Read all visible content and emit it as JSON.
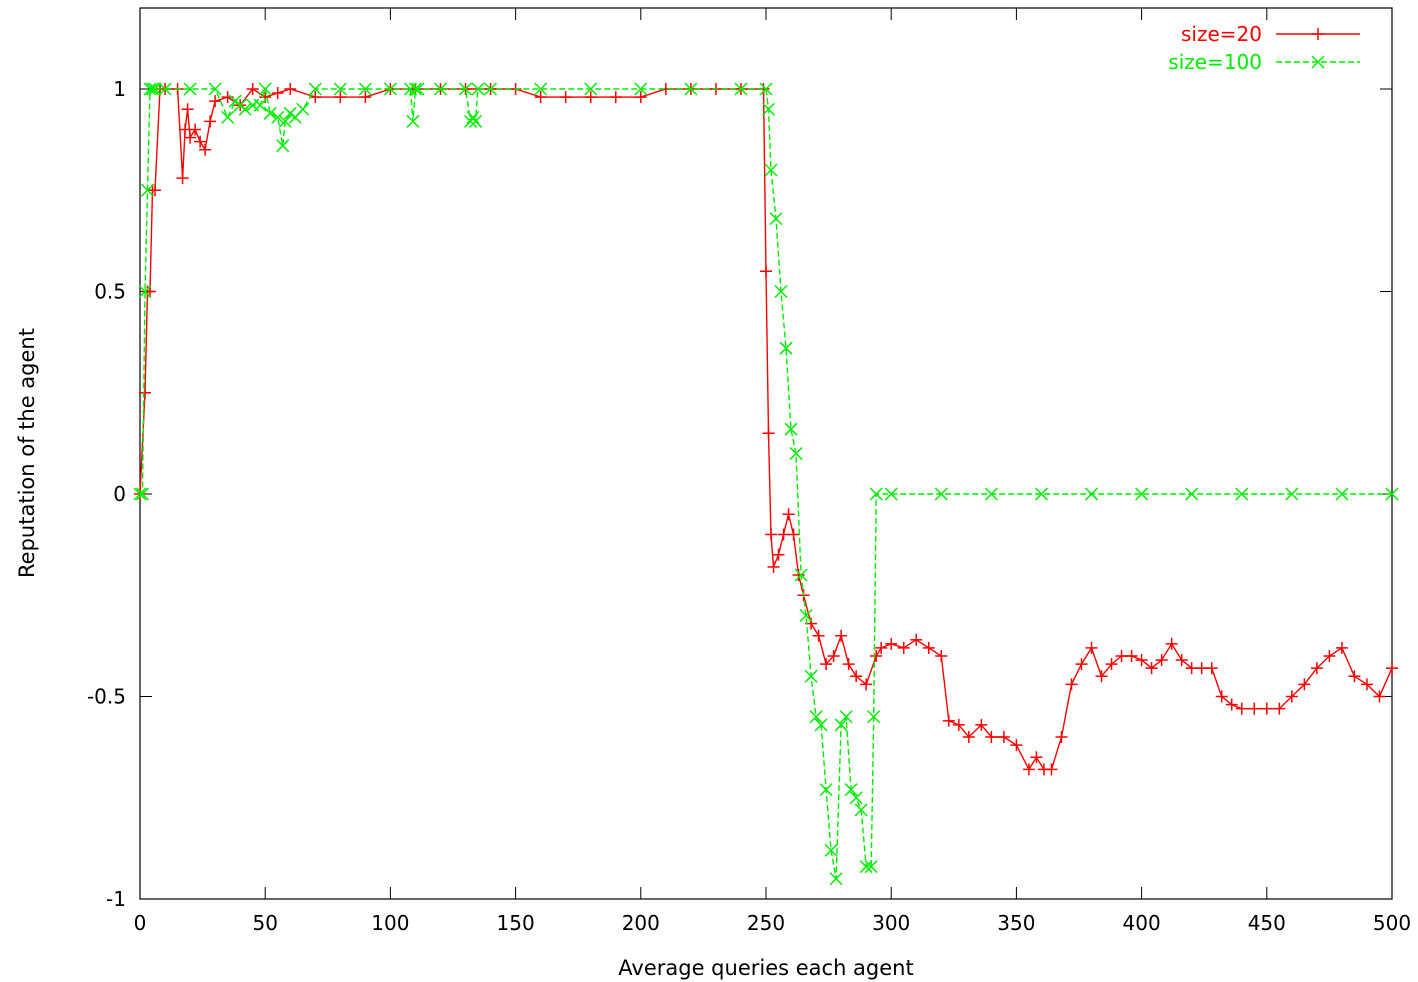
{
  "chart_data": {
    "type": "line",
    "title": "",
    "xlabel": "Average queries each agent",
    "ylabel": "Reputation of the agent",
    "xlim": [
      0,
      500
    ],
    "ylim": [
      -1,
      1.2
    ],
    "xticks": [
      0,
      50,
      100,
      150,
      200,
      250,
      300,
      350,
      400,
      450,
      500
    ],
    "yticks": [
      -1,
      -0.5,
      0,
      0.5,
      1
    ],
    "xtick_labels": [
      "0",
      "50",
      "100",
      "150",
      "200",
      "250",
      "300",
      "350",
      "400",
      "450",
      "500"
    ],
    "ytick_labels": [
      "-1",
      "-0.5",
      "0",
      "0.5",
      "1"
    ],
    "grid": false,
    "legend_position": "top-right",
    "series": [
      {
        "name": "size=20",
        "color": "#ff0000",
        "marker": "plus",
        "line_style": "solid",
        "x": [
          0,
          2,
          3,
          4,
          5,
          6,
          8,
          10,
          15,
          17,
          18,
          19,
          20,
          22,
          24,
          26,
          28,
          30,
          35,
          40,
          45,
          50,
          55,
          60,
          70,
          80,
          90,
          100,
          110,
          120,
          130,
          140,
          150,
          160,
          170,
          180,
          190,
          200,
          210,
          220,
          230,
          240,
          249,
          250,
          251,
          252,
          253,
          255,
          257,
          259,
          261,
          263,
          265,
          268,
          271,
          274,
          277,
          280,
          283,
          286,
          290,
          294,
          296,
          300,
          305,
          310,
          315,
          320,
          323,
          327,
          331,
          336,
          340,
          345,
          350,
          355,
          358,
          361,
          364,
          368,
          372,
          376,
          380,
          384,
          388,
          392,
          396,
          400,
          404,
          408,
          412,
          416,
          420,
          424,
          428,
          432,
          436,
          440,
          445,
          450,
          455,
          460,
          465,
          470,
          475,
          480,
          485,
          490,
          495,
          500
        ],
        "y": [
          0,
          0.25,
          0.5,
          0.5,
          0.75,
          0.75,
          1,
          1,
          1,
          0.78,
          0.9,
          0.95,
          0.88,
          0.9,
          0.87,
          0.85,
          0.92,
          0.97,
          0.98,
          0.96,
          1,
          0.98,
          0.99,
          1,
          0.98,
          0.98,
          0.98,
          1,
          1,
          1,
          1,
          1,
          1,
          0.98,
          0.98,
          0.98,
          0.98,
          0.98,
          1,
          1,
          1,
          1,
          1,
          0.55,
          0.15,
          -0.1,
          -0.18,
          -0.15,
          -0.1,
          -0.05,
          -0.1,
          -0.2,
          -0.25,
          -0.32,
          -0.35,
          -0.42,
          -0.4,
          -0.35,
          -0.42,
          -0.45,
          -0.47,
          -0.4,
          -0.38,
          -0.37,
          -0.38,
          -0.36,
          -0.38,
          -0.4,
          -0.56,
          -0.57,
          -0.6,
          -0.57,
          -0.6,
          -0.6,
          -0.62,
          -0.68,
          -0.65,
          -0.68,
          -0.68,
          -0.6,
          -0.47,
          -0.42,
          -0.38,
          -0.45,
          -0.42,
          -0.4,
          -0.4,
          -0.41,
          -0.43,
          -0.41,
          -0.37,
          -0.41,
          -0.43,
          -0.43,
          -0.43,
          -0.5,
          -0.52,
          -0.53,
          -0.53,
          -0.53,
          -0.53,
          -0.5,
          -0.47,
          -0.43,
          -0.4,
          -0.38,
          -0.45,
          -0.47,
          -0.5,
          -0.43
        ]
      },
      {
        "name": "size=100",
        "color": "#00ee00",
        "marker": "cross",
        "line_style": "dashed",
        "x": [
          0,
          1,
          2,
          3,
          4,
          5,
          6,
          10,
          20,
          30,
          35,
          38,
          40,
          42,
          45,
          48,
          50,
          52,
          55,
          57,
          58,
          60,
          62,
          65,
          70,
          80,
          90,
          100,
          108,
          109,
          110,
          111,
          120,
          130,
          132,
          133,
          134,
          135,
          140,
          160,
          180,
          200,
          220,
          240,
          250,
          251,
          252,
          254,
          256,
          258,
          260,
          262,
          264,
          266,
          268,
          270,
          272,
          274,
          276,
          278,
          280,
          282,
          284,
          286,
          288,
          290,
          292,
          293,
          294,
          300,
          320,
          340,
          360,
          380,
          400,
          420,
          440,
          460,
          480,
          500
        ],
        "y": [
          0,
          0,
          0.5,
          0.75,
          1,
          1,
          1,
          1,
          1,
          1,
          0.93,
          0.97,
          0.96,
          0.95,
          0.96,
          0.96,
          1,
          0.94,
          0.93,
          0.86,
          0.92,
          0.94,
          0.93,
          0.95,
          1,
          1,
          1,
          1,
          1,
          0.92,
          1,
          1,
          1,
          1,
          0.92,
          0.93,
          0.92,
          1,
          1,
          1,
          1,
          1,
          1,
          1,
          1,
          0.95,
          0.8,
          0.68,
          0.5,
          0.36,
          0.16,
          0.1,
          -0.2,
          -0.3,
          -0.45,
          -0.55,
          -0.57,
          -0.73,
          -0.88,
          -0.95,
          -0.57,
          -0.55,
          -0.73,
          -0.75,
          -0.78,
          -0.92,
          -0.92,
          -0.55,
          0,
          0,
          0,
          0,
          0,
          0,
          0,
          0,
          0,
          0,
          0,
          0
        ]
      }
    ]
  }
}
